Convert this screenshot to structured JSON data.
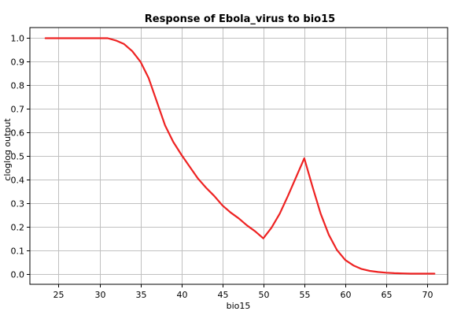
{
  "chart_data": {
    "type": "line",
    "title": "Response of Ebola_virus to bio15",
    "xlabel": "bio15",
    "ylabel": "cloglog output",
    "xlim": [
      21.5,
      72.5
    ],
    "ylim": [
      -0.045,
      1.045
    ],
    "x_ticks": [
      25,
      30,
      35,
      40,
      45,
      50,
      55,
      60,
      65,
      70
    ],
    "x_tick_labels": [
      "25",
      "30",
      "35",
      "40",
      "45",
      "50",
      "55",
      "60",
      "65",
      "70"
    ],
    "y_ticks": [
      0.0,
      0.1,
      0.2,
      0.3,
      0.4,
      0.5,
      0.6,
      0.7,
      0.8,
      0.9,
      1.0
    ],
    "y_tick_labels": [
      "0.0",
      "0.1",
      "0.2",
      "0.3",
      "0.4",
      "0.5",
      "0.6",
      "0.7",
      "0.8",
      "0.9",
      "1.0"
    ],
    "grid": true,
    "series": [
      {
        "color": "#ee2222",
        "x": [
          23.4,
          25,
          27,
          29,
          31,
          32,
          33,
          34,
          35,
          36,
          37,
          38,
          39,
          40,
          41,
          42,
          43,
          44,
          45,
          46,
          47,
          48,
          49,
          50,
          51,
          52,
          53,
          54,
          55,
          56,
          57,
          58,
          59,
          60,
          61,
          62,
          63,
          64,
          65,
          66,
          67,
          68,
          69,
          70,
          70.9
        ],
        "y": [
          1.0,
          1.0,
          1.0,
          1.0,
          1.0,
          0.99,
          0.975,
          0.945,
          0.9,
          0.83,
          0.73,
          0.63,
          0.56,
          0.505,
          0.455,
          0.405,
          0.365,
          0.33,
          0.29,
          0.26,
          0.235,
          0.205,
          0.18,
          0.15,
          0.195,
          0.255,
          0.33,
          0.41,
          0.49,
          0.37,
          0.255,
          0.165,
          0.1,
          0.058,
          0.035,
          0.02,
          0.012,
          0.007,
          0.004,
          0.002,
          0.001,
          0.0,
          0.0,
          0.0,
          0.0
        ]
      }
    ]
  }
}
